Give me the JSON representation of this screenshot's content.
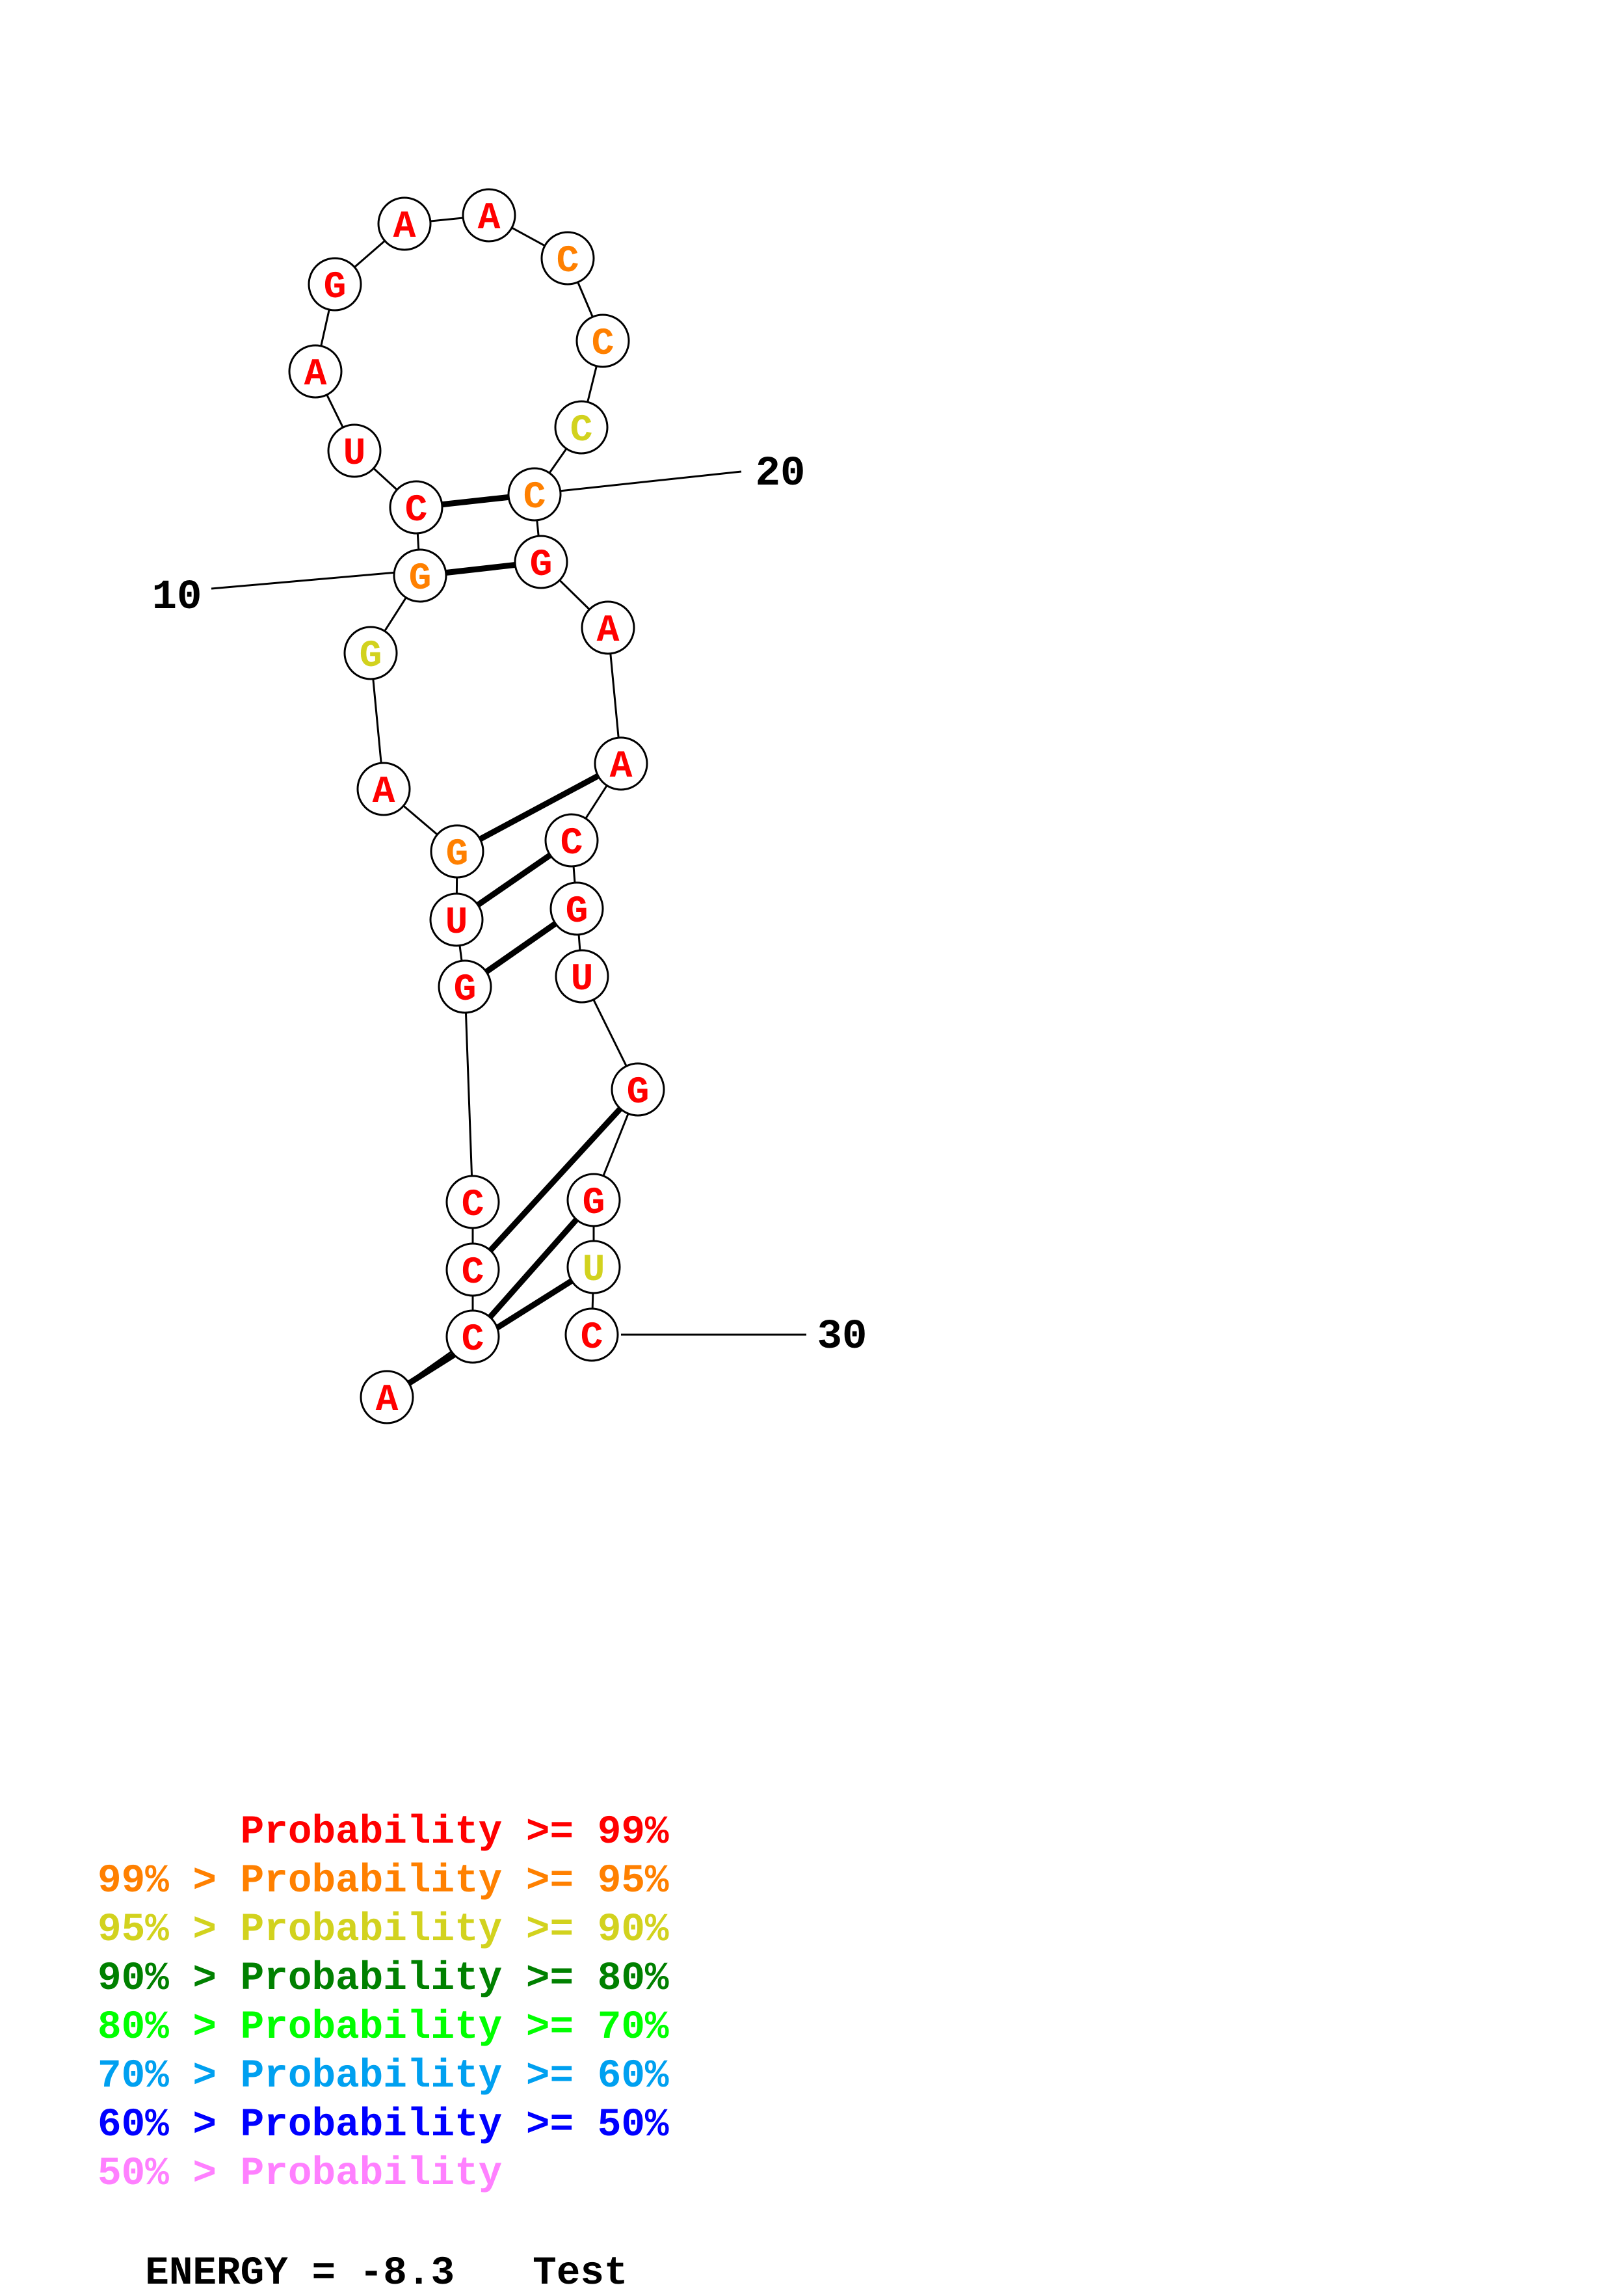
{
  "diagram": {
    "sequence": [
      "A",
      "C",
      "C",
      "C",
      "G",
      "U",
      "G",
      "A",
      "G",
      "G",
      "C",
      "U",
      "A",
      "G",
      "A",
      "A",
      "C",
      "C",
      "C",
      "C",
      "G",
      "A",
      "A",
      "C",
      "G",
      "U",
      "G",
      "G",
      "U",
      "C"
    ],
    "probability_class": [
      0,
      0,
      0,
      0,
      0,
      0,
      1,
      0,
      2,
      1,
      0,
      0,
      0,
      0,
      0,
      0,
      1,
      1,
      2,
      1,
      0,
      0,
      0,
      0,
      0,
      0,
      0,
      0,
      2,
      0
    ],
    "base_pairs": [
      [
        1,
        29
      ],
      [
        2,
        28
      ],
      [
        3,
        27
      ],
      [
        5,
        25
      ],
      [
        6,
        24
      ],
      [
        7,
        23
      ],
      [
        10,
        21
      ],
      [
        11,
        20
      ]
    ],
    "position_labels": [
      {
        "index": 10,
        "text": "10"
      },
      {
        "index": 20,
        "text": "20"
      },
      {
        "index": 30,
        "text": "30"
      }
    ],
    "colors": {
      "circle_stroke": "#000000",
      "backbone": "#000000",
      "pair_line": "#000000"
    }
  },
  "legend": {
    "rows": [
      {
        "prefix": "",
        "label": "Probability",
        "suffix": " >= 99%",
        "color": "#ff0000"
      },
      {
        "prefix": "99% > ",
        "label": "Probability",
        "suffix": " >= 95%",
        "color": "#ff8000"
      },
      {
        "prefix": "95% > ",
        "label": "Probability",
        "suffix": " >= 90%",
        "color": "#d2d21e"
      },
      {
        "prefix": "90% > ",
        "label": "Probability",
        "suffix": " >= 80%",
        "color": "#008000"
      },
      {
        "prefix": "80% > ",
        "label": "Probability",
        "suffix": " >= 70%",
        "color": "#00ff00"
      },
      {
        "prefix": "70% > ",
        "label": "Probability",
        "suffix": " >= 60%",
        "color": "#00a0f0"
      },
      {
        "prefix": "60% > ",
        "label": "Probability",
        "suffix": " >= 50%",
        "color": "#0000ff"
      },
      {
        "prefix": "50% > ",
        "label": "Probability",
        "suffix": "",
        "color": "#ff80ff"
      }
    ]
  },
  "footer": {
    "energy": "ENERGY = -8.3",
    "title": "Test"
  }
}
